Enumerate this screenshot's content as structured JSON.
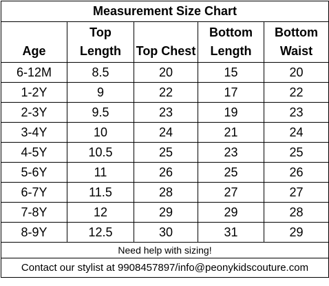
{
  "table": {
    "title": "Measurement Size Chart",
    "columns": [
      "Age",
      "Top Length",
      "Top Chest",
      "Bottom Length",
      "Bottom Waist"
    ],
    "rows": [
      [
        "6-12M",
        "8.5",
        "20",
        "15",
        "20"
      ],
      [
        "1-2Y",
        "9",
        "22",
        "17",
        "22"
      ],
      [
        "2-3Y",
        "9.5",
        "23",
        "19",
        "23"
      ],
      [
        "3-4Y",
        "10",
        "24",
        "21",
        "24"
      ],
      [
        "4-5Y",
        "10.5",
        "25",
        "23",
        "25"
      ],
      [
        "5-6Y",
        "11",
        "26",
        "25",
        "26"
      ],
      [
        "6-7Y",
        "11.5",
        "28",
        "27",
        "27"
      ],
      [
        "7-8Y",
        "12",
        "29",
        "29",
        "28"
      ],
      [
        "8-9Y",
        "12.5",
        "30",
        "31",
        "29"
      ]
    ],
    "help_note": "Need help with sizing!",
    "contact_note": "Contact our stylist at 9908457897/info@peonykidscouture.com"
  }
}
